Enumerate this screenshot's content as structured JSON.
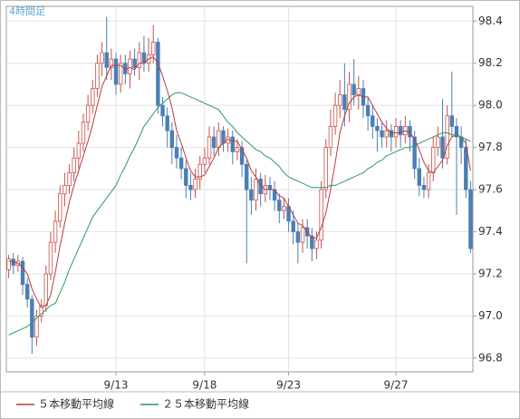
{
  "chart_data": {
    "type": "candlestick",
    "title": "4時間足",
    "categories": [
      null,
      null,
      null,
      null,
      null,
      null,
      null,
      null,
      null,
      null,
      null,
      null,
      null,
      null,
      null,
      null,
      null,
      null,
      null,
      null,
      null,
      null,
      null,
      "9/13",
      null,
      null,
      null,
      null,
      null,
      null,
      null,
      null,
      null,
      null,
      null,
      null,
      null,
      null,
      null,
      null,
      null,
      null,
      "9/18",
      null,
      null,
      null,
      null,
      null,
      null,
      null,
      null,
      null,
      null,
      null,
      null,
      null,
      null,
      null,
      null,
      null,
      "9/23",
      null,
      null,
      null,
      null,
      null,
      null,
      null,
      null,
      null,
      null,
      null,
      null,
      null,
      null,
      null,
      null,
      null,
      null,
      null,
      null,
      null,
      null,
      "9/27",
      null,
      null,
      null,
      null,
      null,
      null,
      null,
      null,
      null,
      null,
      null,
      null,
      null,
      null,
      null,
      null
    ],
    "open": [
      97.22,
      97.27,
      97.24,
      97.26,
      97.15,
      97.08,
      96.9,
      97.0,
      97.05,
      97.2,
      97.35,
      97.45,
      97.58,
      97.62,
      97.68,
      97.75,
      97.82,
      97.92,
      98.0,
      98.08,
      98.2,
      98.25,
      98.18,
      98.22,
      98.1,
      98.2,
      98.15,
      98.22,
      98.18,
      98.25,
      98.2,
      98.24,
      98.3,
      98.0,
      97.95,
      97.88,
      97.8,
      97.75,
      97.7,
      97.62,
      97.6,
      97.65,
      97.72,
      97.75,
      97.85,
      97.8,
      97.88,
      97.82,
      97.85,
      97.78,
      97.8,
      97.72,
      97.6,
      97.55,
      97.65,
      97.58,
      97.62,
      97.6,
      97.55,
      97.5,
      97.52,
      97.45,
      97.4,
      97.35,
      97.42,
      97.38,
      97.32,
      97.36,
      97.6,
      97.8,
      97.9,
      98.0,
      98.05,
      97.98,
      98.1,
      98.05,
      98.08,
      98.0,
      97.95,
      97.9,
      97.88,
      97.85,
      97.88,
      97.85,
      97.9,
      97.86,
      97.9,
      97.85,
      97.7,
      97.62,
      97.6,
      97.68,
      97.8,
      97.85,
      97.75,
      97.95,
      97.9,
      97.85,
      97.8,
      97.6
    ],
    "high": [
      97.29,
      97.3,
      97.29,
      97.28,
      97.18,
      97.1,
      97.03,
      97.08,
      97.24,
      97.4,
      97.5,
      97.62,
      97.68,
      97.72,
      97.8,
      97.88,
      97.96,
      98.05,
      98.12,
      98.24,
      98.3,
      98.42,
      98.27,
      98.25,
      98.24,
      98.24,
      98.26,
      98.27,
      98.3,
      98.33,
      98.32,
      98.38,
      98.32,
      98.04,
      97.99,
      97.92,
      97.86,
      97.8,
      97.74,
      97.68,
      97.7,
      97.76,
      97.8,
      97.9,
      97.9,
      97.92,
      97.9,
      97.89,
      97.88,
      97.84,
      97.83,
      97.74,
      97.66,
      97.7,
      97.68,
      97.67,
      97.66,
      97.64,
      97.58,
      97.56,
      97.56,
      97.5,
      97.44,
      97.46,
      97.46,
      97.42,
      97.4,
      97.64,
      97.84,
      97.98,
      98.06,
      98.12,
      98.2,
      98.16,
      98.22,
      98.14,
      98.12,
      98.04,
      98.0,
      97.94,
      97.92,
      97.93,
      97.91,
      97.94,
      97.93,
      97.95,
      97.93,
      97.88,
      97.75,
      97.66,
      97.72,
      97.85,
      97.9,
      98.03,
      98.0,
      98.16,
      97.94,
      97.9,
      97.84,
      97.64
    ],
    "low": [
      97.18,
      97.2,
      97.21,
      97.1,
      97.04,
      96.82,
      96.86,
      96.97,
      97.02,
      97.17,
      97.3,
      97.42,
      97.52,
      97.58,
      97.64,
      97.7,
      97.78,
      97.88,
      97.96,
      98.04,
      98.14,
      98.12,
      98.12,
      98.05,
      98.06,
      98.1,
      98.08,
      98.14,
      98.12,
      98.16,
      98.16,
      98.2,
      97.96,
      97.9,
      97.8,
      97.72,
      97.7,
      97.65,
      97.56,
      97.55,
      97.56,
      97.6,
      97.68,
      97.72,
      97.76,
      97.76,
      97.78,
      97.78,
      97.72,
      97.74,
      97.66,
      97.25,
      97.48,
      97.5,
      97.52,
      97.54,
      97.55,
      97.5,
      97.44,
      97.46,
      97.4,
      97.34,
      97.25,
      97.3,
      97.32,
      97.26,
      97.27,
      97.32,
      97.56,
      97.76,
      97.86,
      97.94,
      97.9,
      97.92,
      98.0,
      97.98,
      97.94,
      97.88,
      97.84,
      97.78,
      97.8,
      97.8,
      97.78,
      97.8,
      97.8,
      97.82,
      97.78,
      97.65,
      97.57,
      97.56,
      97.56,
      97.64,
      97.76,
      97.7,
      97.72,
      97.85,
      97.48,
      97.72,
      97.56,
      97.3
    ],
    "close": [
      97.27,
      97.24,
      97.26,
      97.15,
      97.08,
      96.9,
      97.0,
      97.05,
      97.2,
      97.35,
      97.45,
      97.58,
      97.62,
      97.68,
      97.75,
      97.82,
      97.92,
      98.0,
      98.08,
      98.2,
      98.25,
      98.18,
      98.22,
      98.1,
      98.2,
      98.15,
      98.22,
      98.18,
      98.25,
      98.2,
      98.24,
      98.3,
      98.0,
      97.95,
      97.88,
      97.8,
      97.75,
      97.7,
      97.62,
      97.6,
      97.65,
      97.72,
      97.75,
      97.85,
      97.8,
      97.88,
      97.82,
      97.85,
      97.78,
      97.8,
      97.72,
      97.6,
      97.55,
      97.65,
      97.58,
      97.62,
      97.6,
      97.55,
      97.5,
      97.52,
      97.45,
      97.4,
      97.35,
      97.42,
      97.38,
      97.32,
      97.36,
      97.6,
      97.8,
      97.9,
      98.0,
      98.05,
      97.98,
      98.1,
      98.05,
      98.08,
      98.0,
      97.95,
      97.9,
      97.88,
      97.85,
      97.88,
      97.85,
      97.9,
      97.86,
      97.9,
      97.85,
      97.7,
      97.62,
      97.6,
      97.68,
      97.8,
      97.85,
      97.75,
      97.95,
      97.9,
      97.85,
      97.8,
      97.6,
      97.32
    ],
    "up_color": "#c8504a",
    "down_color": "#4a7eb5",
    "series": [
      {
        "name": "５本移動平均線",
        "color": "#b83b3b",
        "values": [
          97.26,
          97.26,
          97.25,
          97.23,
          97.2,
          97.13,
          97.08,
          97.04,
          97.05,
          97.1,
          97.21,
          97.33,
          97.44,
          97.54,
          97.62,
          97.69,
          97.76,
          97.83,
          97.91,
          98.0,
          98.09,
          98.14,
          98.19,
          98.19,
          98.19,
          98.17,
          98.18,
          98.17,
          98.2,
          98.2,
          98.22,
          98.23,
          98.2,
          98.14,
          98.07,
          97.99,
          97.88,
          97.82,
          97.75,
          97.69,
          97.66,
          97.66,
          97.67,
          97.71,
          97.75,
          97.8,
          97.82,
          97.84,
          97.83,
          97.83,
          97.79,
          97.75,
          97.69,
          97.66,
          97.62,
          97.6,
          97.6,
          97.6,
          97.57,
          97.56,
          97.52,
          97.48,
          97.44,
          97.43,
          97.4,
          97.37,
          97.37,
          97.42,
          97.49,
          97.6,
          97.73,
          97.87,
          97.95,
          98.01,
          98.04,
          98.05,
          98.04,
          98.04,
          98.0,
          97.96,
          97.92,
          97.89,
          97.87,
          97.87,
          97.87,
          97.88,
          97.87,
          97.84,
          97.79,
          97.73,
          97.69,
          97.68,
          97.71,
          97.74,
          97.81,
          97.85,
          97.86,
          97.85,
          97.82,
          97.69
        ]
      },
      {
        "name": "２５本移動平均線",
        "color": "#2f9a5c",
        "values": [
          96.91,
          96.92,
          96.93,
          96.94,
          96.95,
          96.97,
          96.99,
          97.01,
          97.03,
          97.05,
          97.06,
          97.11,
          97.16,
          97.22,
          97.27,
          97.32,
          97.37,
          97.42,
          97.47,
          97.5,
          97.53,
          97.56,
          97.59,
          97.62,
          97.67,
          97.71,
          97.76,
          97.8,
          97.85,
          97.9,
          97.93,
          97.96,
          97.99,
          98.01,
          98.03,
          98.05,
          98.06,
          98.06,
          98.05,
          98.04,
          98.03,
          98.02,
          98.01,
          98.0,
          97.99,
          97.98,
          97.95,
          97.92,
          97.9,
          97.87,
          97.85,
          97.83,
          97.81,
          97.79,
          97.78,
          97.76,
          97.75,
          97.73,
          97.71,
          97.68,
          97.66,
          97.65,
          97.64,
          97.63,
          97.62,
          97.61,
          97.61,
          97.61,
          97.61,
          97.62,
          97.62,
          97.63,
          97.64,
          97.65,
          97.66,
          97.67,
          97.68,
          97.7,
          97.71,
          97.73,
          97.74,
          97.76,
          97.77,
          97.78,
          97.79,
          97.8,
          97.8,
          97.81,
          97.82,
          97.83,
          97.84,
          97.85,
          97.86,
          97.87,
          97.87,
          97.86,
          97.86,
          97.85,
          97.84,
          97.83
        ]
      }
    ],
    "ylim": [
      96.735,
      98.47
    ],
    "yticks": [
      {
        "value": 96.8,
        "label": "96.8"
      },
      {
        "value": 97.0,
        "label": "97.0"
      },
      {
        "value": 97.2,
        "label": "97.2"
      },
      {
        "value": 97.4,
        "label": "97.4"
      },
      {
        "value": 97.6,
        "label": "97.6"
      },
      {
        "value": 97.8,
        "label": "97.8"
      },
      {
        "value": 98.0,
        "label": "98.0"
      },
      {
        "value": 98.2,
        "label": "98.2"
      },
      {
        "value": 98.4,
        "label": "98.4"
      }
    ],
    "grid": true
  }
}
